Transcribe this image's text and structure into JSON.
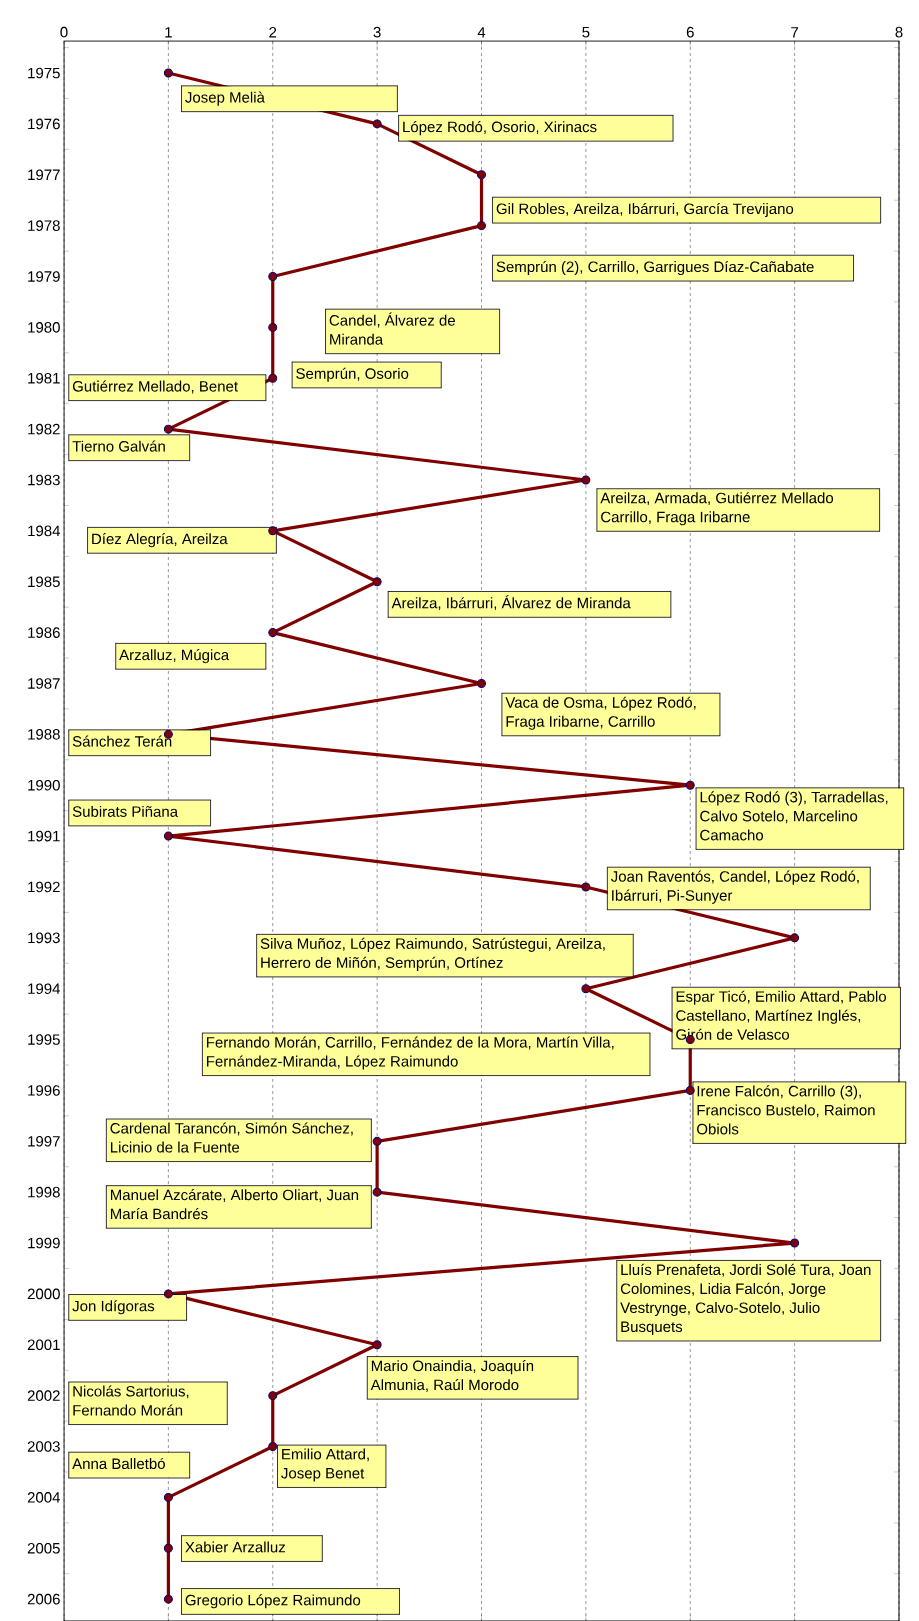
{
  "chart_data": {
    "type": "line",
    "orientation": "horizontal",
    "categories": [
      "1975",
      "1976",
      "1977",
      "1978",
      "1979",
      "1980",
      "1981",
      "1982",
      "1983",
      "1984",
      "1985",
      "1986",
      "1987",
      "1988",
      "1990",
      "1991",
      "1992",
      "1993",
      "1994",
      "1995",
      "1996",
      "1997",
      "1998",
      "1999",
      "2000",
      "2001",
      "2002",
      "2003",
      "2004",
      "2005",
      "2006"
    ],
    "values": [
      1,
      3,
      4,
      4,
      2,
      2,
      2,
      1,
      5,
      2,
      3,
      2,
      4,
      1,
      6,
      1,
      5,
      7,
      5,
      6,
      6,
      3,
      3,
      7,
      1,
      3,
      2,
      2,
      1,
      1,
      1
    ],
    "color": "#800000",
    "marker": "circle",
    "line_style": "solid",
    "grid": "x",
    "xlim": [
      0,
      8
    ],
    "xticks": [
      0,
      1,
      2,
      3,
      4,
      5,
      6,
      7,
      8
    ],
    "annotations": [
      {
        "text": "Josep Melià",
        "x": 1,
        "y": "1975"
      },
      {
        "text": "López Rodó, Osorio, Xirinacs",
        "x": 3,
        "y": "1976"
      },
      {
        "text": "Gil Robles, Areilza, Ibárruri, García Trevijano",
        "x": 4,
        "y": "1977"
      },
      {
        "text": "Semprún (2), Carrillo, Garrigues Díaz-Cañabate",
        "x": 4,
        "y": "1978"
      },
      "Candel, Álvarez de Miranda",
      "Semprún, Osorio",
      {
        "text": "Gutiérrez Mellado, Benet",
        "x": 2,
        "y": "1981"
      },
      {
        "text": "Tierno Galván",
        "x": 1,
        "y": "1982"
      },
      {
        "text": "Areilza, Armada, Gutiérrez Mellado Carrillo, Fraga Iribarne",
        "x": 5,
        "y": "1983"
      },
      {
        "text": "Díez Alegría, Areilza",
        "x": 2,
        "y": "1984"
      },
      {
        "text": "Areilza, Ibárruri, Álvarez de Miranda",
        "x": 3,
        "y": "1985"
      },
      "Arzalluz, Múgica",
      {
        "text": "Vaca de Osma, López Rodó, Fraga Iribarne, Carrillo",
        "x": 4,
        "y": "1987"
      },
      {
        "text": "Sánchez Terán",
        "x": 1,
        "y": "1988"
      },
      {
        "text": "López Rodó (3), Tarradellas, Calvo Sotelo, Marcelino Camacho",
        "x": 6,
        "y": "1990"
      },
      {
        "text": "Subirats Piñana",
        "x": 1,
        "y": "1991"
      },
      {
        "text": "Joan Raventós, Candel, López Rodó, Ibárruri, Pi-Sunyer",
        "x": 5,
        "y": "1992"
      },
      "Silva Muñoz, López Raimundo, Satrústegui, Areilza, Herrero de Miñón, Semprún, Ortínez",
      "Espar Ticó, Emilio Attard, Pablo Castellano, Martínez Inglés, Girón de Velasco",
      "Fernando Morán, Carrillo, Fernández de la Mora, Martín Villa, Fernández-Miranda, López Raimundo",
      {
        "text": "Irene Falcón, Carrillo (3), Francisco Bustelo, Raimon Obiols",
        "x": 6,
        "y": "1996"
      },
      {
        "text": "Cardenal Tarancón, Simón Sánchez, Licinio de la Fuente",
        "x": 3,
        "y": "1997"
      },
      {
        "text": "Manuel Azcárate, Alberto Oliart, Juan María Bandrés",
        "x": 3,
        "y": "1998"
      },
      {
        "text": "Lluís Prenafeta, Jordi Solé Tura, Joan Colomines, Lidia Falcón, Jorge Vestrynge, Calvo-Sotelo, Julio Busquets",
        "x": 7,
        "y": "1999"
      },
      {
        "text": "Jon Idígoras",
        "x": 1,
        "y": "2000"
      },
      {
        "text": "Mario Onaindia, Joaquín Almunia, Raúl Morodo",
        "x": 3,
        "y": "2001"
      },
      "Nicolás Sartorius, Fernando Morán",
      {
        "text": "Emilio Attard, Josep Benet",
        "x": 2,
        "y": "2003"
      },
      {
        "text": "Anna Balletbó",
        "x": 1,
        "y": "2004"
      },
      {
        "text": "Xabier Arzalluz",
        "x": 1,
        "y": "2005"
      },
      {
        "text": "Gregorio López Raimundo",
        "x": 1,
        "y": "2006"
      }
    ]
  }
}
